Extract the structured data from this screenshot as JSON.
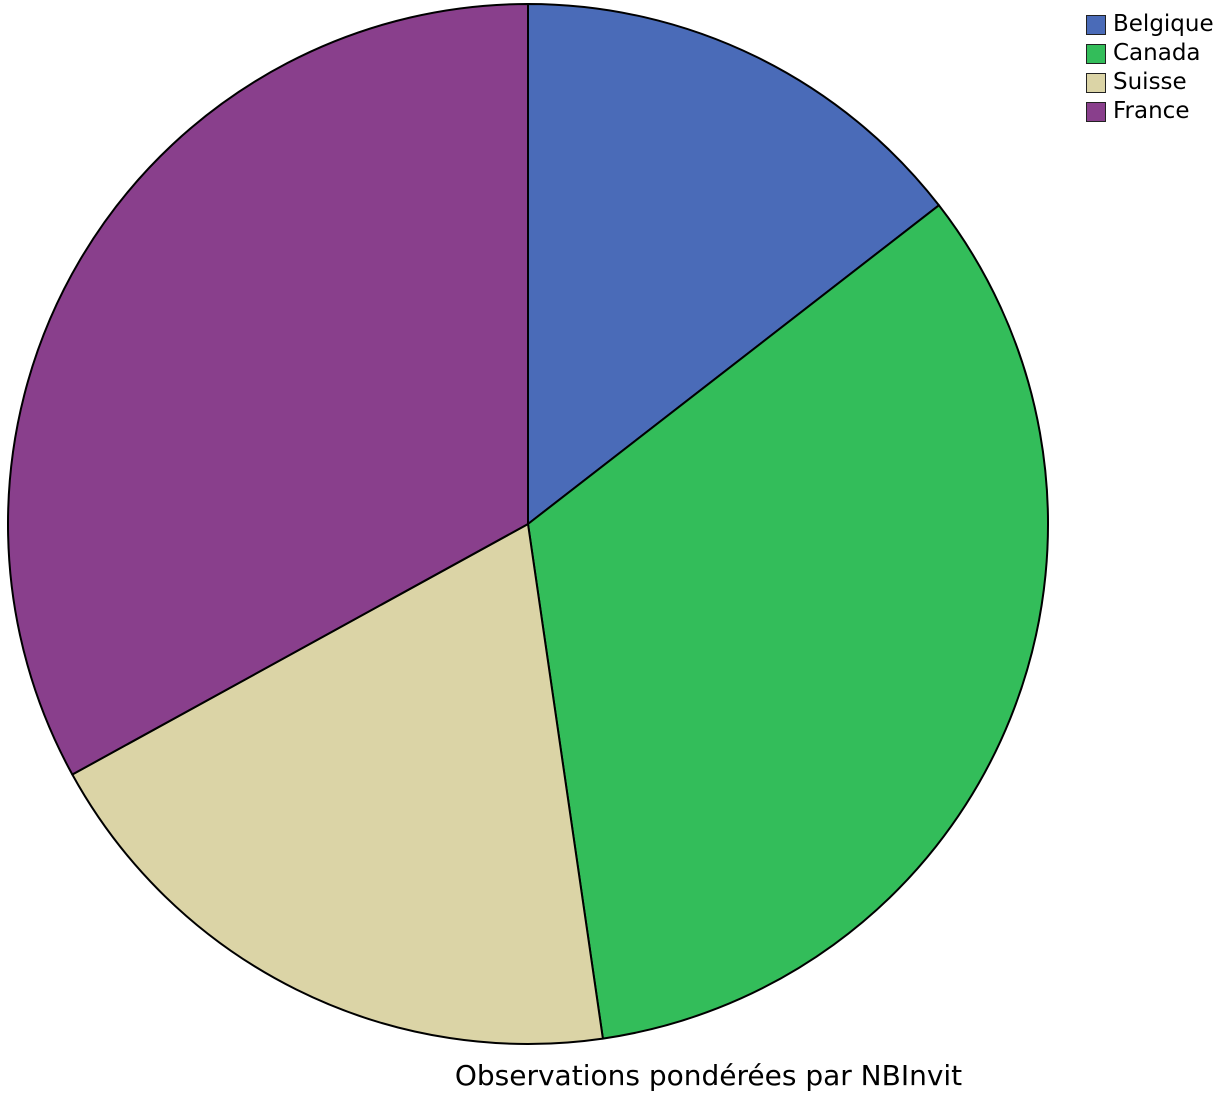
{
  "chart_data": {
    "type": "pie",
    "categories": [
      "Belgique",
      "Canada",
      "Suisse",
      "France"
    ],
    "values": [
      14.5,
      33.2,
      19.3,
      33.0
    ],
    "colors": [
      "#4a6bb8",
      "#33bd5a",
      "#dbd4a6",
      "#893f8c"
    ],
    "start_angle_deg": 0,
    "direction": "clockwise",
    "legend_position": "top-right",
    "footnote": "Observations pondérées par NBInvit"
  },
  "legend": {
    "items": [
      {
        "label": "Belgique",
        "color": "#4a6bb8"
      },
      {
        "label": "Canada",
        "color": "#33bd5a"
      },
      {
        "label": "Suisse",
        "color": "#dbd4a6"
      },
      {
        "label": "France",
        "color": "#893f8c"
      }
    ]
  }
}
